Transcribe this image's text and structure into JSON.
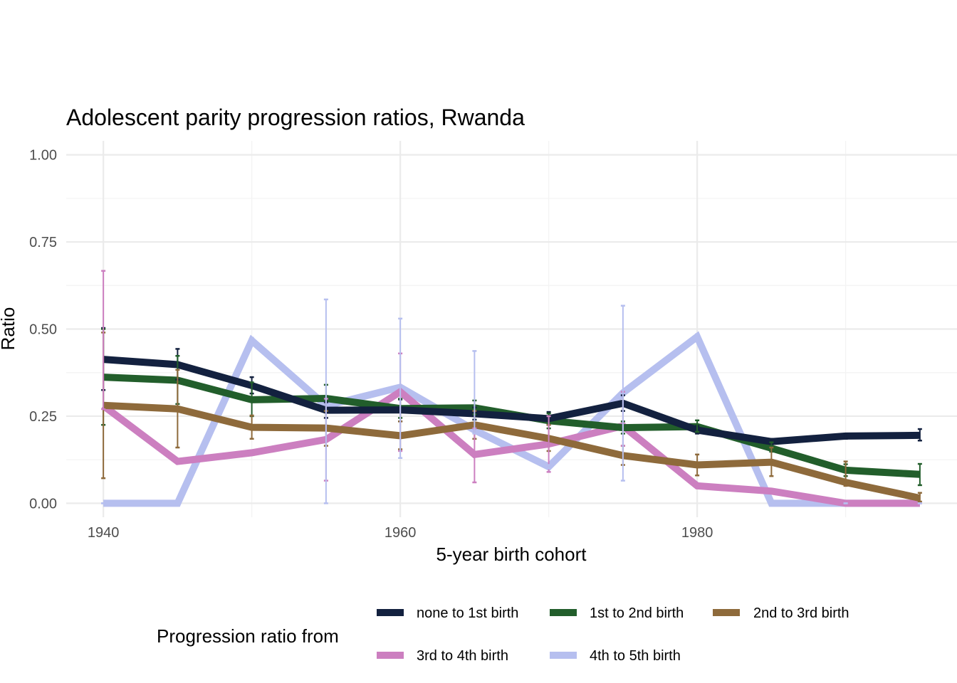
{
  "chart_data": {
    "type": "line",
    "title": "Adolescent parity progression ratios,  Rwanda",
    "xlabel": "5-year birth cohort",
    "ylabel": "Ratio",
    "xlim": [
      1937.5,
      1997.5
    ],
    "ylim": [
      -0.04,
      1.04
    ],
    "x_ticks": [
      1940,
      1960,
      1980
    ],
    "y_ticks": [
      0,
      0.25,
      0.5,
      0.75,
      1.0
    ],
    "y_tick_labels": [
      "0.00",
      "0.25",
      "0.50",
      "0.75",
      "1.00"
    ],
    "x": [
      1940,
      1945,
      1950,
      1955,
      1960,
      1965,
      1970,
      1975,
      1980,
      1985,
      1990,
      1995
    ],
    "legend_title": "Progression ratio from",
    "legend_position": "bottom",
    "series": [
      {
        "name": "none to 1st birth",
        "color": "#13213f",
        "values": [
          0.413,
          0.398,
          0.338,
          0.267,
          0.268,
          0.257,
          0.243,
          0.287,
          0.21,
          0.177,
          0.193,
          0.195
        ],
        "ci_low": [
          0.325,
          0.355,
          0.315,
          0.245,
          0.235,
          0.24,
          0.225,
          0.265,
          0.2,
          0.172,
          0.185,
          0.18
        ],
        "ci_high": [
          0.503,
          0.443,
          0.362,
          0.29,
          0.298,
          0.275,
          0.262,
          0.31,
          0.222,
          0.185,
          0.2,
          0.213
        ]
      },
      {
        "name": "1st to 2nd birth",
        "color": "#225e2b",
        "values": [
          0.362,
          0.353,
          0.297,
          0.301,
          0.272,
          0.274,
          0.237,
          0.217,
          0.22,
          0.158,
          0.095,
          0.083
        ],
        "ci_low": [
          0.225,
          0.285,
          0.25,
          0.265,
          0.245,
          0.255,
          0.215,
          0.2,
          0.205,
          0.148,
          0.078,
          0.052
        ],
        "ci_high": [
          0.5,
          0.423,
          0.347,
          0.34,
          0.3,
          0.295,
          0.258,
          0.235,
          0.238,
          0.175,
          0.112,
          0.113
        ]
      },
      {
        "name": "2nd to 3rd birth",
        "color": "#8e6a3b",
        "values": [
          0.281,
          0.271,
          0.218,
          0.216,
          0.194,
          0.225,
          0.186,
          0.137,
          0.11,
          0.118,
          0.06,
          0.015
        ],
        "ci_low": [
          0.072,
          0.16,
          0.185,
          0.165,
          0.155,
          0.185,
          0.15,
          0.11,
          0.08,
          0.078,
          0.05,
          0.005
        ],
        "ci_high": [
          0.49,
          0.383,
          0.252,
          0.265,
          0.235,
          0.265,
          0.225,
          0.165,
          0.14,
          0.16,
          0.12,
          0.03
        ]
      },
      {
        "name": "3rd to 4th birth",
        "color": "#cc7fc0",
        "values": [
          0.28,
          0.12,
          0.145,
          0.183,
          0.32,
          0.14,
          0.17,
          0.222,
          0.05,
          0.035,
          0.0,
          0.0
        ],
        "ci_low": [
          0.27,
          0.115,
          0.14,
          0.065,
          0.15,
          0.06,
          0.09,
          0.165,
          0.045,
          0.03,
          0.0,
          0.0
        ],
        "ci_high": [
          0.667,
          0.125,
          0.15,
          0.3,
          0.43,
          0.215,
          0.25,
          0.32,
          0.055,
          0.04,
          0.0,
          0.0
        ]
      },
      {
        "name": "4th to 5th birth",
        "color": "#b6bfef",
        "values": [
          0.0,
          0.0,
          0.467,
          0.28,
          0.333,
          0.21,
          0.105,
          0.317,
          0.478,
          0.0,
          0.0,
          0.0
        ],
        "ci_low": [
          0.0,
          0.0,
          0.46,
          0.0,
          0.13,
          0.2,
          0.1,
          0.065,
          0.47,
          0.0,
          0.0,
          0.0
        ],
        "ci_high": [
          0.0,
          0.0,
          0.475,
          0.585,
          0.53,
          0.437,
          0.11,
          0.567,
          0.485,
          0.0,
          0.0,
          0.0
        ]
      }
    ]
  }
}
